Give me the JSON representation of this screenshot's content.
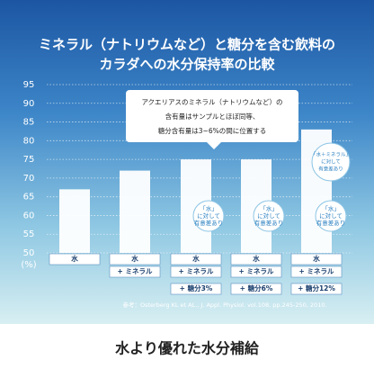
{
  "chart_data": {
    "type": "bar",
    "title": [
      "ミネラル（ナトリウムなど）と糖分を含む飲料の",
      "カラダへの水分保持率の比較"
    ],
    "y_label": "(%)",
    "categories": [
      [
        "水"
      ],
      [
        "水",
        "+ ミネラル"
      ],
      [
        "水",
        "+ ミネラル",
        "+ 糖分3%"
      ],
      [
        "水",
        "+ ミネラル",
        "+ 糖分6%"
      ],
      [
        "水",
        "+ ミネラル",
        "+ 糖分12%"
      ]
    ],
    "values": [
      67,
      72,
      75,
      75,
      83
    ],
    "color": "#ffffff",
    "ylim": [
      50,
      95
    ],
    "yticks": [
      50,
      55,
      60,
      65,
      70,
      75,
      80,
      85,
      90,
      95
    ],
    "grid": true,
    "callout": [
      "アクエリアスのミネラル（ナトリウムなど）の",
      "含有量はサンプルとほぼ同等、",
      "糖分含有量は3~6%の間に位置する"
    ],
    "bubbles": [
      [
        "「水」",
        "に対して",
        "有意差あり"
      ],
      [
        "「水」",
        "に対して",
        "有意差あり"
      ],
      [
        "「水」",
        "に対して",
        "有意差あり"
      ],
      [
        "「水＋ミネラル」",
        "に対して",
        "有意差あり"
      ]
    ],
    "reference": "参考：Osterberg KL et AL., J. Appl. Physiol. vol.108, pp.245-250, 2010.",
    "footer": "水より優れた水分補給"
  }
}
